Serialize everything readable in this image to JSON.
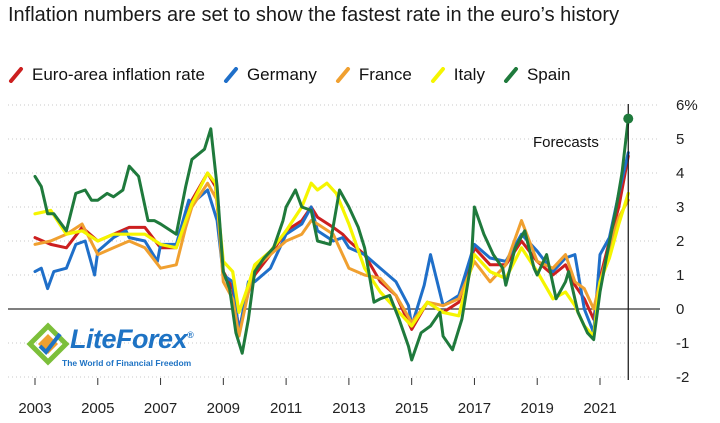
{
  "title": "Inflation numbers are set to show the fastest rate in the euro’s history",
  "annotation": "Forecasts",
  "logo": {
    "name": "LiteForex",
    "registered_mark": "®",
    "tagline": "The World of Financial Freedom"
  },
  "chart_data": {
    "type": "line",
    "title": "Inflation numbers are set to show the fastest rate in the euro’s history",
    "xlabel": "",
    "ylabel": "",
    "xlim": [
      2002.9,
      2022.2
    ],
    "ylim": [
      -2,
      6
    ],
    "x_ticks": [
      "2003",
      "2005",
      "2007",
      "2009",
      "2011",
      "2013",
      "2015",
      "2017",
      "2019",
      "2021"
    ],
    "y_ticks": [
      "6%",
      "5",
      "4",
      "3",
      "2",
      "1",
      "0",
      "-1",
      "-2"
    ],
    "y_tick_values": [
      6,
      5,
      4,
      3,
      2,
      1,
      0,
      -1,
      -2
    ],
    "grid": "horizontal dotted",
    "legend": "top",
    "forecast_marker_x": 2021.9,
    "series": [
      {
        "name": "Euro-area inflation rate",
        "color": "#cc1f1f",
        "points": [
          [
            2003.0,
            2.1
          ],
          [
            2003.5,
            1.9
          ],
          [
            2004.0,
            1.8
          ],
          [
            2004.5,
            2.4
          ],
          [
            2005.0,
            2.0
          ],
          [
            2005.5,
            2.2
          ],
          [
            2006.0,
            2.4
          ],
          [
            2006.5,
            2.4
          ],
          [
            2007.0,
            1.8
          ],
          [
            2007.5,
            1.8
          ],
          [
            2007.8,
            2.6
          ],
          [
            2008.0,
            3.2
          ],
          [
            2008.5,
            4.0
          ],
          [
            2008.75,
            3.6
          ],
          [
            2009.0,
            1.1
          ],
          [
            2009.3,
            0.6
          ],
          [
            2009.5,
            -0.6
          ],
          [
            2009.8,
            0.5
          ],
          [
            2010.0,
            1.0
          ],
          [
            2010.5,
            1.6
          ],
          [
            2011.0,
            2.3
          ],
          [
            2011.5,
            2.6
          ],
          [
            2011.8,
            3.0
          ],
          [
            2012.0,
            2.7
          ],
          [
            2012.5,
            2.4
          ],
          [
            2012.8,
            2.2
          ],
          [
            2013.0,
            2.0
          ],
          [
            2013.5,
            1.6
          ],
          [
            2014.0,
            0.8
          ],
          [
            2014.5,
            0.4
          ],
          [
            2015.0,
            -0.6
          ],
          [
            2015.5,
            0.2
          ],
          [
            2016.0,
            -0.1
          ],
          [
            2016.5,
            0.2
          ],
          [
            2017.0,
            1.8
          ],
          [
            2017.5,
            1.3
          ],
          [
            2018.0,
            1.3
          ],
          [
            2018.5,
            2.0
          ],
          [
            2019.0,
            1.4
          ],
          [
            2019.5,
            1.0
          ],
          [
            2019.9,
            1.3
          ],
          [
            2020.2,
            0.7
          ],
          [
            2020.5,
            0.3
          ],
          [
            2020.8,
            -0.3
          ],
          [
            2021.0,
            0.9
          ],
          [
            2021.3,
            2.0
          ],
          [
            2021.6,
            3.0
          ],
          [
            2021.9,
            4.5
          ]
        ]
      },
      {
        "name": "Germany",
        "color": "#1f6fc9",
        "points": [
          [
            2003.0,
            1.1
          ],
          [
            2003.2,
            1.2
          ],
          [
            2003.4,
            0.6
          ],
          [
            2003.6,
            1.1
          ],
          [
            2004.0,
            1.2
          ],
          [
            2004.3,
            1.9
          ],
          [
            2004.6,
            2.0
          ],
          [
            2004.9,
            1.0
          ],
          [
            2005.0,
            1.7
          ],
          [
            2005.5,
            2.1
          ],
          [
            2005.9,
            2.3
          ],
          [
            2006.0,
            2.1
          ],
          [
            2006.5,
            2.0
          ],
          [
            2006.9,
            1.4
          ],
          [
            2007.0,
            1.9
          ],
          [
            2007.5,
            1.9
          ],
          [
            2007.9,
            3.2
          ],
          [
            2008.0,
            3.1
          ],
          [
            2008.5,
            3.5
          ],
          [
            2008.8,
            2.6
          ],
          [
            2009.0,
            1.0
          ],
          [
            2009.3,
            0.8
          ],
          [
            2009.5,
            -0.7
          ],
          [
            2009.8,
            0.8
          ],
          [
            2010.0,
            0.8
          ],
          [
            2010.5,
            1.2
          ],
          [
            2011.0,
            2.2
          ],
          [
            2011.5,
            2.5
          ],
          [
            2011.8,
            3.0
          ],
          [
            2012.0,
            2.3
          ],
          [
            2012.5,
            2.0
          ],
          [
            2012.8,
            2.1
          ],
          [
            2013.0,
            1.8
          ],
          [
            2013.5,
            1.6
          ],
          [
            2014.0,
            1.2
          ],
          [
            2014.5,
            0.8
          ],
          [
            2014.9,
            0.1
          ],
          [
            2015.0,
            -0.5
          ],
          [
            2015.4,
            0.7
          ],
          [
            2015.6,
            1.6
          ],
          [
            2016.0,
            0.1
          ],
          [
            2016.5,
            0.4
          ],
          [
            2017.0,
            1.9
          ],
          [
            2017.5,
            1.5
          ],
          [
            2018.0,
            1.4
          ],
          [
            2018.5,
            2.2
          ],
          [
            2019.0,
            1.7
          ],
          [
            2019.5,
            1.1
          ],
          [
            2019.9,
            1.5
          ],
          [
            2020.2,
            1.6
          ],
          [
            2020.5,
            0.0
          ],
          [
            2020.8,
            -0.7
          ],
          [
            2021.0,
            1.6
          ],
          [
            2021.3,
            2.1
          ],
          [
            2021.6,
            3.4
          ],
          [
            2021.9,
            4.6
          ]
        ]
      },
      {
        "name": "France",
        "color": "#f0a030",
        "points": [
          [
            2003.0,
            1.9
          ],
          [
            2003.5,
            2.0
          ],
          [
            2004.0,
            2.2
          ],
          [
            2004.5,
            2.5
          ],
          [
            2005.0,
            1.6
          ],
          [
            2005.5,
            1.8
          ],
          [
            2006.0,
            2.0
          ],
          [
            2006.5,
            1.8
          ],
          [
            2007.0,
            1.2
          ],
          [
            2007.5,
            1.3
          ],
          [
            2007.8,
            2.4
          ],
          [
            2008.0,
            3.0
          ],
          [
            2008.5,
            3.7
          ],
          [
            2008.8,
            3.2
          ],
          [
            2009.0,
            0.8
          ],
          [
            2009.3,
            0.3
          ],
          [
            2009.5,
            -0.8
          ],
          [
            2009.8,
            0.5
          ],
          [
            2010.0,
            1.2
          ],
          [
            2010.5,
            1.6
          ],
          [
            2011.0,
            2.0
          ],
          [
            2011.5,
            2.2
          ],
          [
            2011.8,
            2.6
          ],
          [
            2012.0,
            2.5
          ],
          [
            2012.5,
            2.2
          ],
          [
            2012.8,
            1.6
          ],
          [
            2013.0,
            1.2
          ],
          [
            2013.5,
            1.0
          ],
          [
            2014.0,
            0.9
          ],
          [
            2014.5,
            0.4
          ],
          [
            2015.0,
            -0.4
          ],
          [
            2015.5,
            0.2
          ],
          [
            2016.0,
            0.1
          ],
          [
            2016.5,
            0.3
          ],
          [
            2017.0,
            1.4
          ],
          [
            2017.5,
            0.8
          ],
          [
            2018.0,
            1.3
          ],
          [
            2018.5,
            2.6
          ],
          [
            2019.0,
            1.4
          ],
          [
            2019.5,
            1.2
          ],
          [
            2019.9,
            1.6
          ],
          [
            2020.2,
            0.8
          ],
          [
            2020.5,
            0.6
          ],
          [
            2020.8,
            0.0
          ],
          [
            2021.0,
            0.8
          ],
          [
            2021.3,
            1.8
          ],
          [
            2021.6,
            2.7
          ],
          [
            2021.9,
            3.2
          ]
        ]
      },
      {
        "name": "Italy",
        "color": "#f5f500",
        "points": [
          [
            2003.0,
            2.8
          ],
          [
            2003.5,
            2.9
          ],
          [
            2004.0,
            2.2
          ],
          [
            2004.5,
            2.3
          ],
          [
            2005.0,
            2.0
          ],
          [
            2005.5,
            2.2
          ],
          [
            2006.0,
            2.2
          ],
          [
            2006.5,
            2.2
          ],
          [
            2007.0,
            1.9
          ],
          [
            2007.5,
            1.8
          ],
          [
            2007.8,
            2.6
          ],
          [
            2008.0,
            3.1
          ],
          [
            2008.5,
            4.0
          ],
          [
            2008.75,
            3.7
          ],
          [
            2009.0,
            1.4
          ],
          [
            2009.3,
            1.1
          ],
          [
            2009.5,
            -0.1
          ],
          [
            2009.8,
            0.7
          ],
          [
            2010.0,
            1.3
          ],
          [
            2010.5,
            1.7
          ],
          [
            2011.0,
            2.3
          ],
          [
            2011.5,
            3.0
          ],
          [
            2011.8,
            3.7
          ],
          [
            2012.0,
            3.5
          ],
          [
            2012.3,
            3.7
          ],
          [
            2012.6,
            3.4
          ],
          [
            2013.0,
            2.5
          ],
          [
            2013.5,
            1.2
          ],
          [
            2014.0,
            0.5
          ],
          [
            2014.5,
            0.0
          ],
          [
            2015.0,
            -0.5
          ],
          [
            2015.5,
            0.2
          ],
          [
            2016.0,
            -0.1
          ],
          [
            2016.5,
            -0.2
          ],
          [
            2017.0,
            1.6
          ],
          [
            2017.5,
            1.1
          ],
          [
            2018.0,
            0.9
          ],
          [
            2018.5,
            1.8
          ],
          [
            2019.0,
            1.1
          ],
          [
            2019.5,
            0.3
          ],
          [
            2019.9,
            0.5
          ],
          [
            2020.2,
            0.1
          ],
          [
            2020.5,
            -0.5
          ],
          [
            2020.8,
            -0.8
          ],
          [
            2021.0,
            0.8
          ],
          [
            2021.3,
            1.5
          ],
          [
            2021.6,
            2.5
          ],
          [
            2021.9,
            3.4
          ]
        ]
      },
      {
        "name": "Spain",
        "color": "#1f7a3c",
        "points": [
          [
            2003.0,
            3.9
          ],
          [
            2003.2,
            3.6
          ],
          [
            2003.4,
            2.8
          ],
          [
            2003.6,
            2.8
          ],
          [
            2004.0,
            2.3
          ],
          [
            2004.3,
            3.4
          ],
          [
            2004.6,
            3.5
          ],
          [
            2004.8,
            3.2
          ],
          [
            2005.0,
            3.2
          ],
          [
            2005.3,
            3.4
          ],
          [
            2005.5,
            3.3
          ],
          [
            2005.8,
            3.5
          ],
          [
            2006.0,
            4.2
          ],
          [
            2006.3,
            3.9
          ],
          [
            2006.6,
            2.6
          ],
          [
            2006.8,
            2.6
          ],
          [
            2007.0,
            2.5
          ],
          [
            2007.5,
            2.2
          ],
          [
            2007.8,
            3.6
          ],
          [
            2008.0,
            4.4
          ],
          [
            2008.4,
            4.7
          ],
          [
            2008.6,
            5.3
          ],
          [
            2008.8,
            3.6
          ],
          [
            2009.0,
            1.1
          ],
          [
            2009.2,
            0.6
          ],
          [
            2009.4,
            -0.7
          ],
          [
            2009.6,
            -1.3
          ],
          [
            2009.8,
            -0.3
          ],
          [
            2010.0,
            1.1
          ],
          [
            2010.3,
            1.5
          ],
          [
            2010.6,
            1.8
          ],
          [
            2010.9,
            2.6
          ],
          [
            2011.0,
            3.0
          ],
          [
            2011.3,
            3.5
          ],
          [
            2011.5,
            3.0
          ],
          [
            2011.8,
            2.9
          ],
          [
            2012.0,
            2.0
          ],
          [
            2012.4,
            1.9
          ],
          [
            2012.7,
            3.5
          ],
          [
            2013.0,
            3.0
          ],
          [
            2013.3,
            2.4
          ],
          [
            2013.5,
            1.8
          ],
          [
            2013.8,
            0.2
          ],
          [
            2014.0,
            0.3
          ],
          [
            2014.3,
            0.4
          ],
          [
            2014.6,
            -0.3
          ],
          [
            2014.9,
            -1.1
          ],
          [
            2015.0,
            -1.5
          ],
          [
            2015.3,
            -0.7
          ],
          [
            2015.6,
            -0.5
          ],
          [
            2015.9,
            -0.1
          ],
          [
            2016.0,
            -0.8
          ],
          [
            2016.3,
            -1.2
          ],
          [
            2016.6,
            -0.3
          ],
          [
            2016.9,
            1.4
          ],
          [
            2017.0,
            3.0
          ],
          [
            2017.3,
            2.2
          ],
          [
            2017.6,
            1.6
          ],
          [
            2017.9,
            1.2
          ],
          [
            2018.0,
            0.7
          ],
          [
            2018.3,
            1.8
          ],
          [
            2018.6,
            2.3
          ],
          [
            2018.9,
            1.2
          ],
          [
            2019.0,
            1.0
          ],
          [
            2019.3,
            1.6
          ],
          [
            2019.6,
            0.3
          ],
          [
            2019.9,
            0.8
          ],
          [
            2020.0,
            1.1
          ],
          [
            2020.3,
            -0.1
          ],
          [
            2020.6,
            -0.7
          ],
          [
            2020.8,
            -0.9
          ],
          [
            2021.0,
            0.5
          ],
          [
            2021.2,
            1.5
          ],
          [
            2021.5,
            2.9
          ],
          [
            2021.7,
            4.0
          ],
          [
            2021.9,
            5.6
          ]
        ]
      }
    ]
  }
}
